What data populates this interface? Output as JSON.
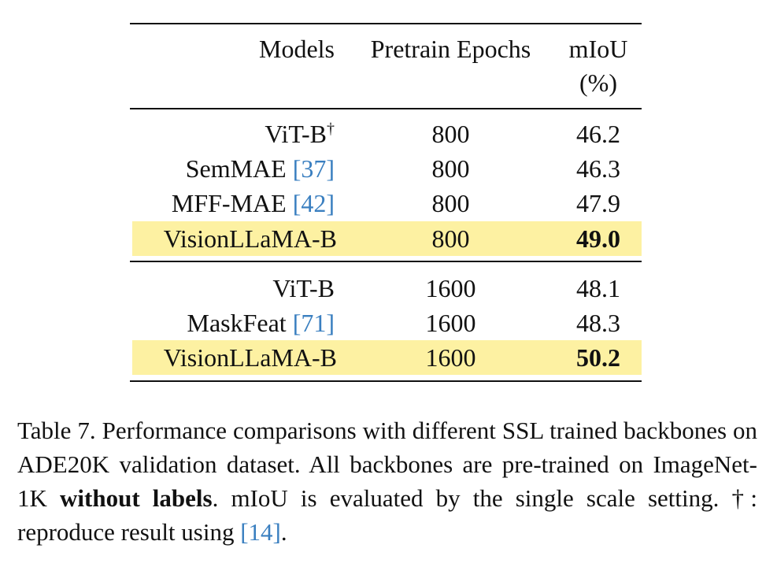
{
  "table": {
    "headers": {
      "models": "Models",
      "epochs": "Pretrain Epochs",
      "miou": "mIoU",
      "miou_unit": "(%)"
    },
    "rows": [
      {
        "model": "ViT-B",
        "mark": "†",
        "ref": "",
        "epochs": "800",
        "miou": "46.2",
        "highlight": false
      },
      {
        "model": "SemMAE ",
        "ref": "[37]",
        "epochs": "800",
        "miou": "46.3",
        "highlight": false
      },
      {
        "model": "MFF-MAE ",
        "ref": "[42]",
        "epochs": "800",
        "miou": "47.9",
        "highlight": false
      },
      {
        "model": "VisionLLaMA-B",
        "ref": "",
        "epochs": "800",
        "miou": "49.0",
        "highlight": true,
        "bold": true
      },
      {
        "model": "ViT-B",
        "ref": "",
        "epochs": "1600",
        "miou": "48.1",
        "highlight": false
      },
      {
        "model": "MaskFeat ",
        "ref": "[71]",
        "epochs": "1600",
        "miou": "48.3",
        "highlight": false
      },
      {
        "model": "VisionLLaMA-B",
        "ref": "",
        "epochs": "1600",
        "miou": "50.2",
        "highlight": true,
        "bold": true
      }
    ]
  },
  "caption": {
    "part1": "Table 7.  Performance comparisons with different SSL trained backbones on ADE20K validation dataset. All backbones are pre-trained on ImageNet-1K ",
    "bold": "without labels",
    "part2": ".  mIoU is evaluated by the single scale setting. †: reproduce result using ",
    "ref": "[14]",
    "end": "."
  },
  "colors": {
    "highlight": "#fdf1a2",
    "reference": "#3a7fc0"
  }
}
